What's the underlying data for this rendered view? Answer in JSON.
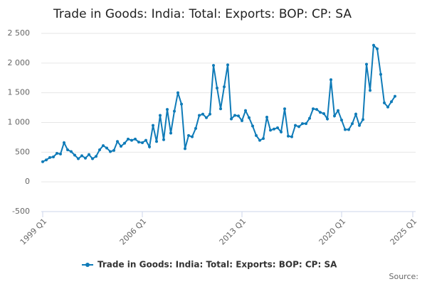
{
  "chart_data": {
    "type": "line",
    "title": "Trade in Goods: India: Total: Exports: BOP: CP: SA",
    "source": "Source:",
    "x": [
      1999,
      1999.25,
      1999.5,
      1999.75,
      2000,
      2000.25,
      2000.5,
      2000.75,
      2001,
      2001.25,
      2001.5,
      2001.75,
      2002,
      2002.25,
      2002.5,
      2002.75,
      2003,
      2003.25,
      2003.5,
      2003.75,
      2004,
      2004.25,
      2004.5,
      2004.75,
      2005,
      2005.25,
      2005.5,
      2005.75,
      2006,
      2006.25,
      2006.5,
      2006.75,
      2007,
      2007.25,
      2007.5,
      2007.75,
      2008,
      2008.25,
      2008.5,
      2008.75,
      2009,
      2009.25,
      2009.5,
      2009.75,
      2010,
      2010.25,
      2010.5,
      2010.75,
      2011,
      2011.25,
      2011.5,
      2011.75,
      2012,
      2012.25,
      2012.5,
      2012.75,
      2013,
      2013.25,
      2013.5,
      2013.75,
      2014,
      2014.25,
      2014.5,
      2014.75,
      2015,
      2015.25,
      2015.5,
      2015.75,
      2016,
      2016.25,
      2016.5,
      2016.75,
      2017,
      2017.25,
      2017.5,
      2017.75,
      2018,
      2018.25,
      2018.5,
      2018.75,
      2019,
      2019.25,
      2019.5,
      2019.75,
      2020,
      2020.25,
      2020.5,
      2020.75,
      2021,
      2021.25,
      2021.5,
      2021.75,
      2022,
      2022.25,
      2022.5,
      2022.75,
      2023,
      2023.25,
      2023.5,
      2023.75
    ],
    "series": [
      {
        "name": "Trade in Goods: India: Total: Exports: BOP: CP: SA",
        "color": "#0f7bb8",
        "values": [
          340,
          370,
          410,
          420,
          480,
          470,
          660,
          540,
          510,
          450,
          390,
          440,
          400,
          460,
          390,
          430,
          540,
          610,
          570,
          510,
          530,
          680,
          600,
          650,
          720,
          700,
          720,
          670,
          660,
          700,
          590,
          950,
          680,
          1120,
          710,
          1220,
          820,
          1190,
          1500,
          1310,
          560,
          780,
          760,
          900,
          1120,
          1140,
          1080,
          1140,
          1960,
          1580,
          1230,
          1600,
          1970,
          1060,
          1120,
          1110,
          1030,
          1200,
          1080,
          940,
          780,
          700,
          730,
          1090,
          870,
          890,
          910,
          840,
          1230,
          770,
          760,
          950,
          930,
          980,
          980,
          1070,
          1230,
          1220,
          1170,
          1150,
          1060,
          1720,
          1110,
          1200,
          1040,
          880,
          880,
          980,
          1140,
          950,
          1050,
          1980,
          1540,
          2300,
          2240,
          1810,
          1330,
          1260,
          1350,
          1440
        ]
      }
    ],
    "xlim": [
      1998.9,
      2025.2
    ],
    "xticks": [
      {
        "value": 1999,
        "label": "1999 Q1"
      },
      {
        "value": 2006,
        "label": "2006 Q1"
      },
      {
        "value": 2013,
        "label": "2013 Q1"
      },
      {
        "value": 2020,
        "label": "2020 Q1"
      },
      {
        "value": 2025,
        "label": "2025 Q1"
      }
    ],
    "ylim": [
      -500,
      2500
    ],
    "yticks": [
      -500,
      0,
      500,
      {
        "value": 1000,
        "label": "1 000"
      },
      {
        "value": 1500,
        "label": "1 500"
      },
      {
        "value": 2000,
        "label": "2 000"
      },
      {
        "value": 2500,
        "label": "2 500"
      }
    ],
    "grid": true
  }
}
